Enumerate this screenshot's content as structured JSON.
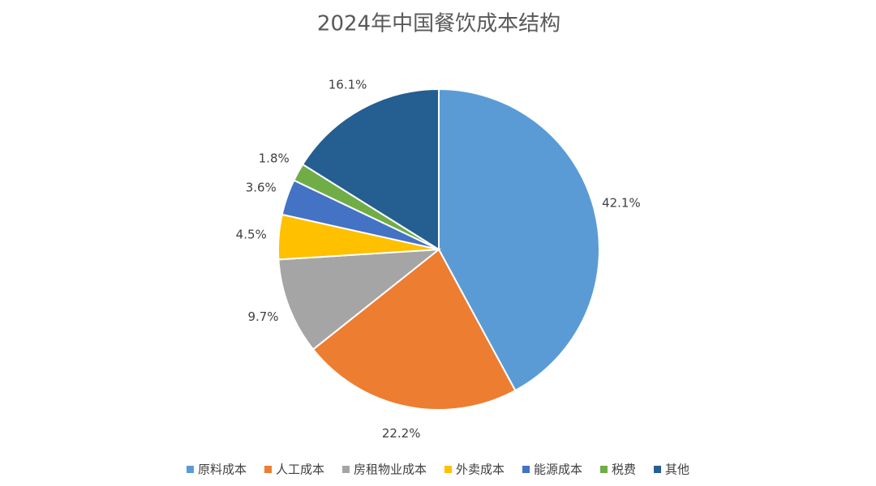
{
  "chart_data": {
    "type": "pie",
    "title": "2024年中国餐饮成本结构",
    "categories": [
      "原料成本",
      "人工成本",
      "房租物业成本",
      "外卖成本",
      "能源成本",
      "税费",
      "其他"
    ],
    "values": [
      42.1,
      22.2,
      9.7,
      4.5,
      3.6,
      1.8,
      16.1
    ],
    "value_labels": [
      "42.1%",
      "22.2%",
      "9.7%",
      "4.5%",
      "3.6%",
      "1.8%",
      "16.1%"
    ],
    "colors": [
      "#5b9bd5",
      "#ed7d31",
      "#a5a5a5",
      "#ffc000",
      "#4472c4",
      "#70ad47",
      "#255e91"
    ],
    "legend": "bottom"
  }
}
